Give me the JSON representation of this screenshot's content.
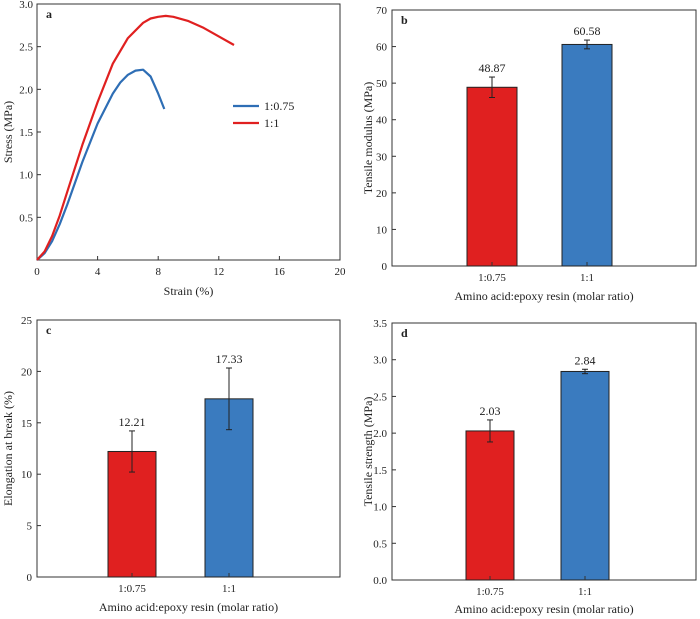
{
  "chart_data": [
    {
      "panel": "a",
      "type": "line",
      "xlabel": "Strain (%)",
      "ylabel": "Stress (MPa)",
      "xlim": [
        0,
        20
      ],
      "ylim": [
        0,
        3.0
      ],
      "xticks": [
        "0",
        "4",
        "8",
        "12",
        "16",
        "20"
      ],
      "yticks": [
        "0.5",
        "1.0",
        "1.5",
        "2.0",
        "2.5",
        "3.0"
      ],
      "legend_position": "right",
      "series": [
        {
          "name": "1:0.75",
          "color": "#2e6eb5",
          "x": [
            0,
            0.5,
            1.0,
            1.5,
            2.0,
            3.0,
            4.0,
            5.0,
            5.5,
            6.0,
            6.5,
            7.0,
            7.5,
            8.0,
            8.4
          ],
          "y": [
            0,
            0.08,
            0.22,
            0.42,
            0.65,
            1.15,
            1.6,
            1.95,
            2.08,
            2.17,
            2.22,
            2.23,
            2.15,
            1.95,
            1.77
          ]
        },
        {
          "name": "1:1",
          "color": "#e02020",
          "x": [
            0,
            0.5,
            1.0,
            1.5,
            2.0,
            3.0,
            4.0,
            5.0,
            6.0,
            7.0,
            7.5,
            8.0,
            8.5,
            9.0,
            10.0,
            11.0,
            12.0,
            13.0
          ],
          "y": [
            0,
            0.1,
            0.28,
            0.52,
            0.8,
            1.35,
            1.85,
            2.3,
            2.6,
            2.78,
            2.83,
            2.85,
            2.86,
            2.85,
            2.8,
            2.72,
            2.62,
            2.52
          ]
        }
      ]
    },
    {
      "panel": "b",
      "type": "bar",
      "xlabel": "Amino acid:epoxy resin (molar ratio)",
      "ylabel": "Tensile modulus (MPa)",
      "ylim": [
        0,
        70
      ],
      "yticks": [
        "0",
        "10",
        "20",
        "30",
        "40",
        "50",
        "60",
        "70"
      ],
      "categories": [
        "1:0.75",
        "1:1"
      ],
      "values": [
        48.87,
        60.58
      ],
      "errors": [
        2.8,
        1.2
      ],
      "value_labels": [
        "48.87",
        "60.58"
      ],
      "colors": [
        "#e02020",
        "#3a7bbf"
      ]
    },
    {
      "panel": "c",
      "type": "bar",
      "xlabel": "Amino acid:epoxy resin (molar ratio)",
      "ylabel": "Elongation at break (%)",
      "ylim": [
        0,
        25
      ],
      "yticks": [
        "0",
        "5",
        "10",
        "15",
        "20",
        "25"
      ],
      "categories": [
        "1:0.75",
        "1:1"
      ],
      "values": [
        12.21,
        17.33
      ],
      "errors": [
        2.0,
        3.0
      ],
      "value_labels": [
        "12.21",
        "17.33"
      ],
      "colors": [
        "#e02020",
        "#3a7bbf"
      ]
    },
    {
      "panel": "d",
      "type": "bar",
      "xlabel": "Amino acid:epoxy resin (molar ratio)",
      "ylabel": "Tensile strength (MPa)",
      "ylim": [
        0,
        3.5
      ],
      "yticks": [
        "0.0",
        "0.5",
        "1.0",
        "1.5",
        "2.0",
        "2.5",
        "3.0",
        "3.5"
      ],
      "categories": [
        "1:0.75",
        "1:1"
      ],
      "values": [
        2.03,
        2.84
      ],
      "errors": [
        0.15,
        0.03
      ],
      "value_labels": [
        "2.03",
        "2.84"
      ],
      "colors": [
        "#e02020",
        "#3a7bbf"
      ]
    }
  ]
}
